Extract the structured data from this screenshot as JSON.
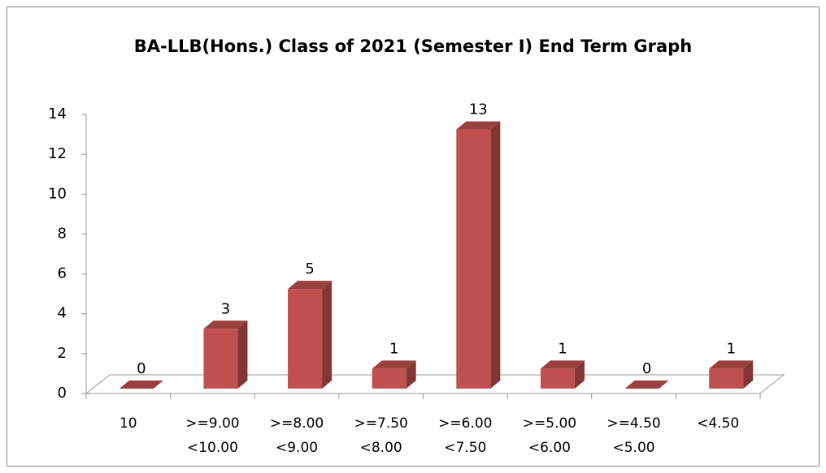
{
  "chart_data": {
    "type": "bar3d",
    "title": "BA-LLB(Hons.) Class of 2021 (Semester I) End Term Graph",
    "categories": [
      "10",
      ">=9.00\n<10.00",
      ">=8.00\n<9.00",
      ">=7.50\n<8.00",
      ">=6.00\n<7.50",
      ">=5.00\n<6.00",
      ">=4.50\n<5.00",
      "<4.50"
    ],
    "values": [
      0,
      3,
      5,
      1,
      13,
      1,
      0,
      1
    ],
    "color": "#c0504d",
    "ylim": [
      0,
      14
    ],
    "yticks": [
      0,
      2,
      4,
      6,
      8,
      10,
      12,
      14
    ],
    "grid": false,
    "data_labels": true
  }
}
